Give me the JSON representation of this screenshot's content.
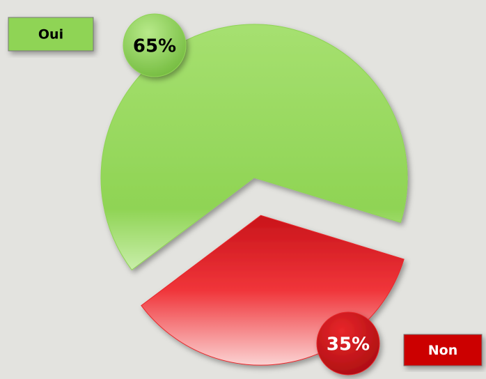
{
  "chart_data": {
    "type": "pie",
    "categories": [
      "Oui",
      "Non"
    ],
    "values": [
      65,
      35
    ],
    "value_labels": [
      "65%",
      "35%"
    ],
    "colors": [
      "#8fd454",
      "#e8262a"
    ]
  }
}
